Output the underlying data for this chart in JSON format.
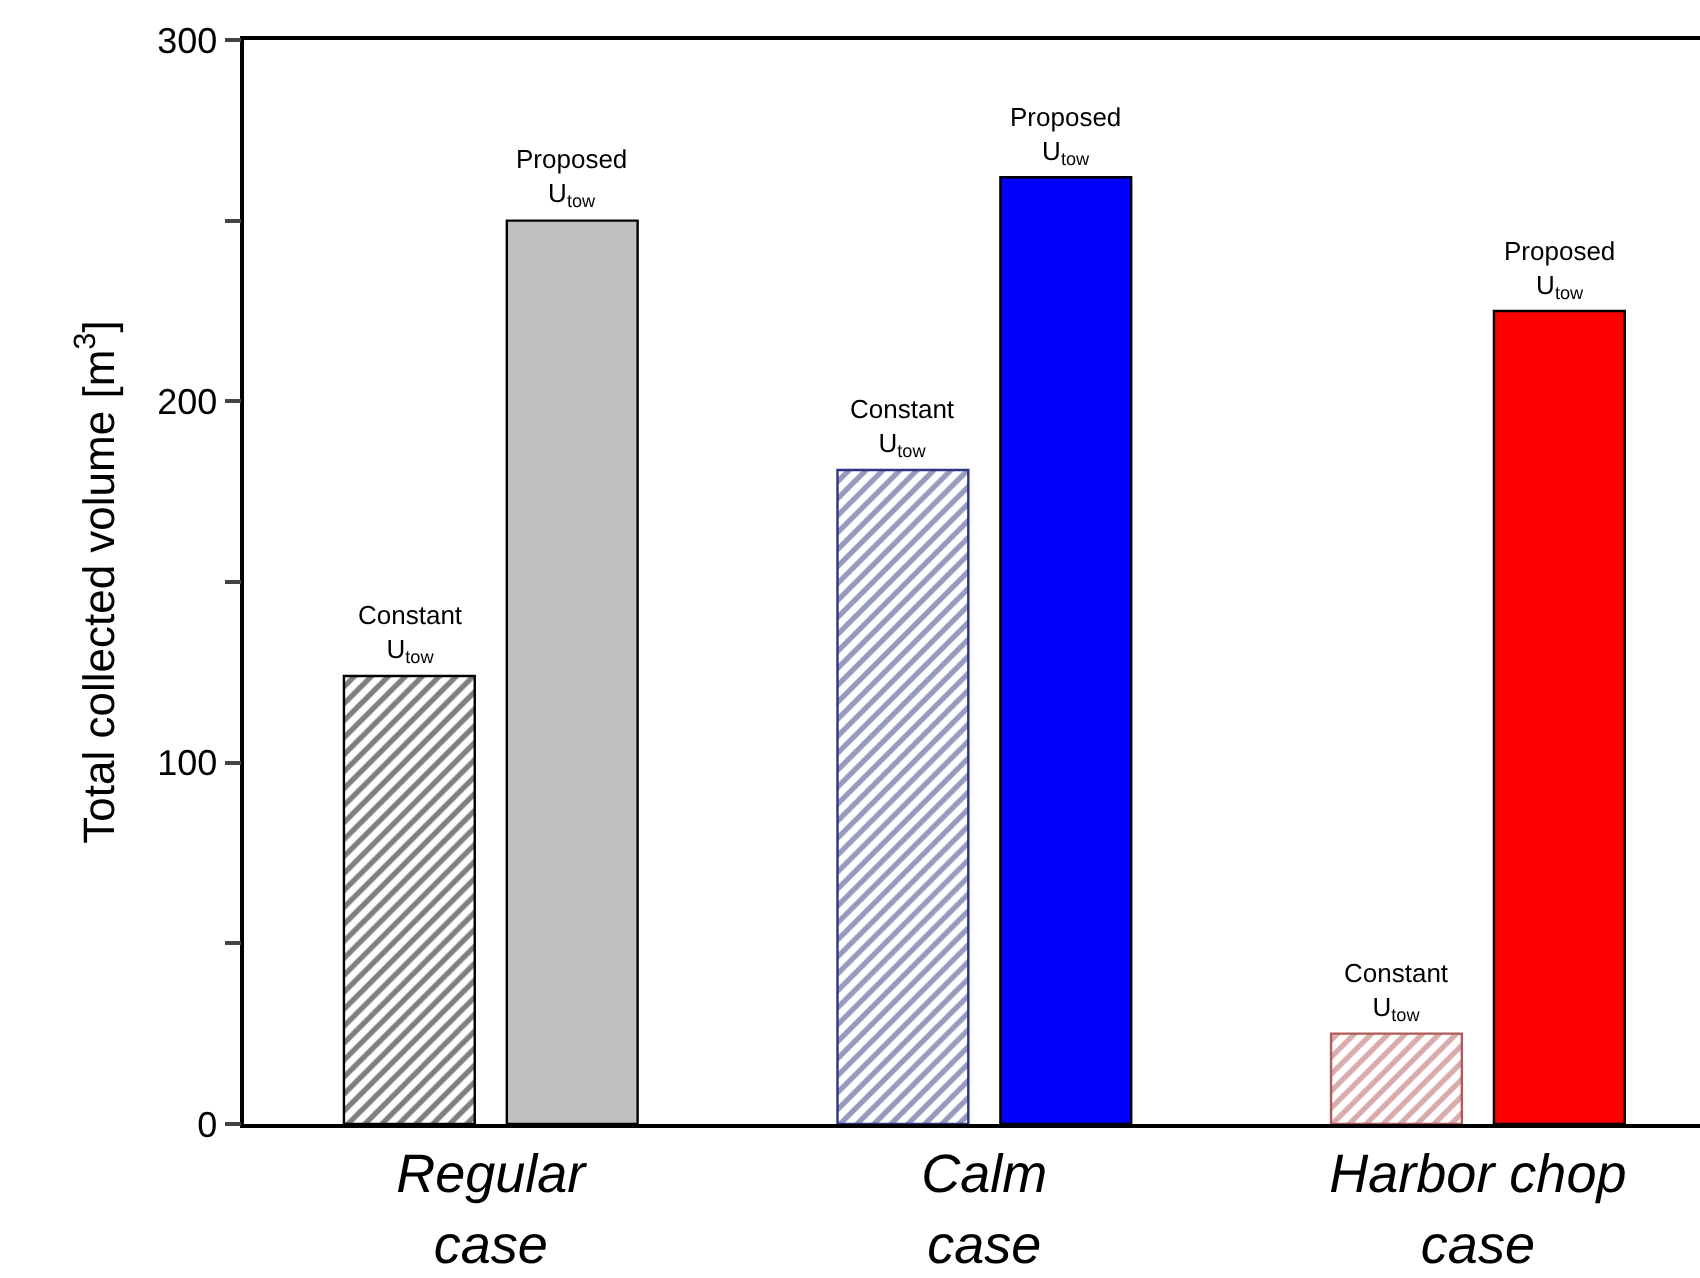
{
  "chart_data": {
    "type": "bar",
    "ylabel": "Total collected volume [m$^{3}$]",
    "categories": [
      "Regular\ncase",
      "Calm\ncase",
      "Harbor chop\ncase"
    ],
    "series": [
      {
        "colors": [
          "#000000",
          "#2e3580",
          "#b35a5a"
        ],
        "values": [
          124,
          181,
          25
        ]
      },
      {
        "colors": [
          "#c0c0c0",
          "#0000ff",
          "#ff0000"
        ],
        "values": [
          250,
          262,
          225
        ]
      }
    ],
    "ylim": [
      0,
      300
    ],
    "yticks": [
      0,
      {
        "value": 50,
        "label": null
      },
      100,
      {
        "value": 150,
        "label": null
      },
      200,
      {
        "value": 250,
        "label": null
      },
      300
    ],
    "annotations": [
      "Constant\nU$_{tow}$",
      "Proposed\nU$_{tow}$",
      "Constant\nU$_{tow}$",
      "Proposed\nU$_{tow}$",
      "Constant\nU$_{tow}$",
      "Proposed\nU$_{tow}$"
    ]
  }
}
